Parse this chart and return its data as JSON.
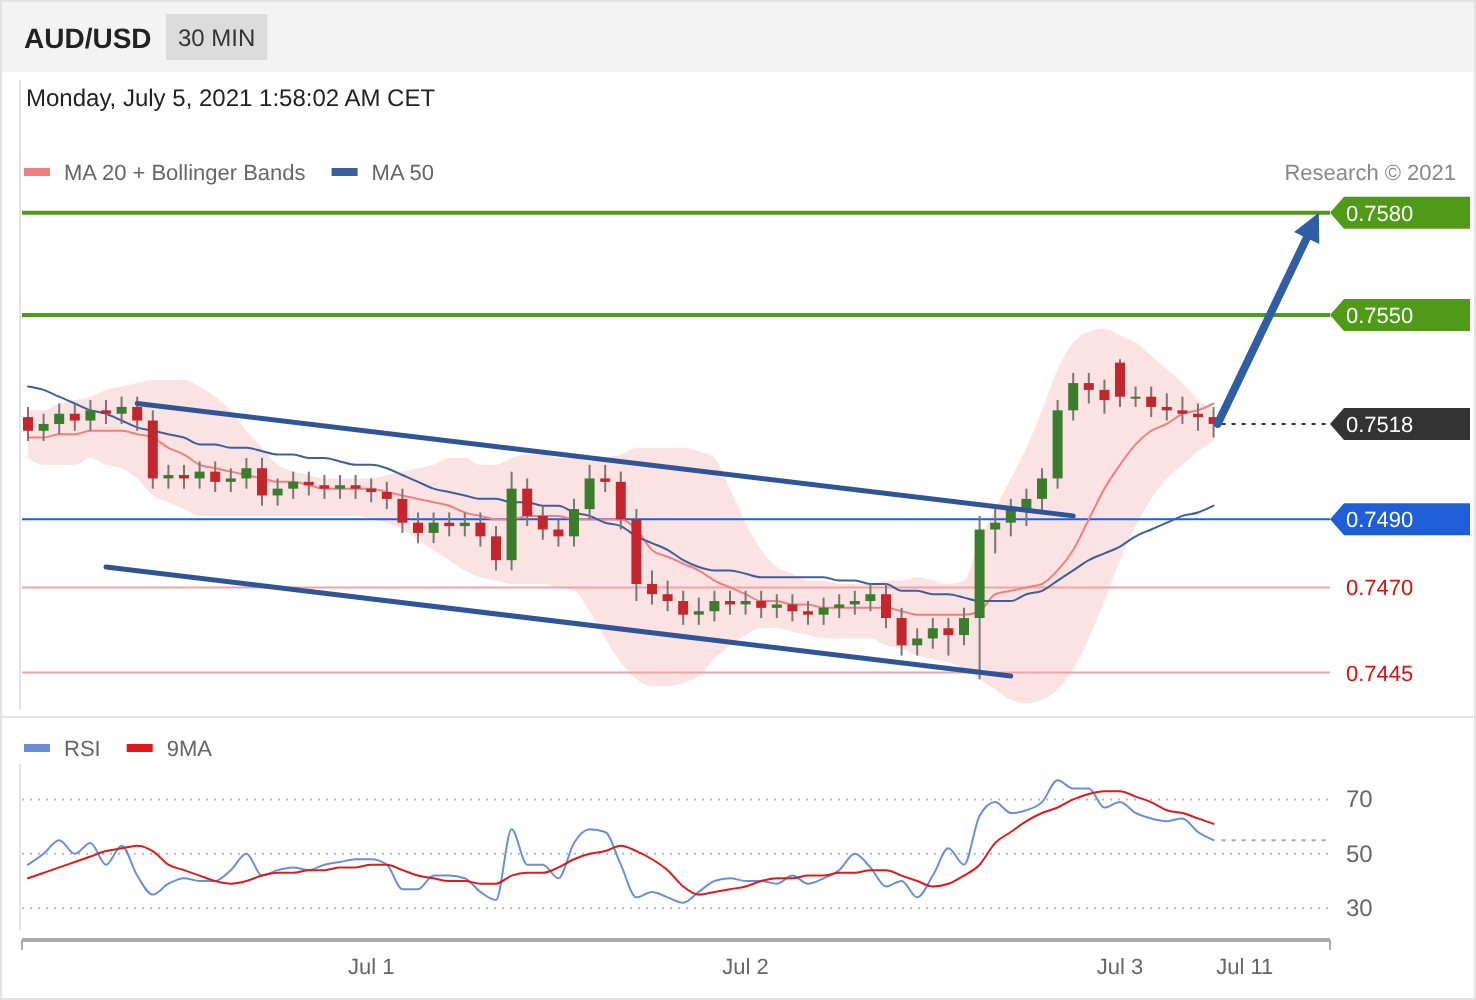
{
  "chart_data": [
    {
      "type": "candlestick",
      "title": "AUD/USD",
      "subtitle": "Monday, July 5, 2021 1:58:02 AM CET",
      "annotations": [
        "30 MIN",
        "Research © 2021"
      ],
      "categories": [
        null,
        null,
        null,
        null,
        null,
        null,
        null,
        null,
        null,
        null,
        null,
        null,
        null,
        null,
        null,
        null,
        null,
        null,
        null,
        null,
        null,
        null,
        null,
        null,
        null,
        null,
        null,
        null,
        null,
        null,
        null,
        null,
        null,
        null,
        null,
        null,
        null,
        null,
        null,
        null,
        null,
        null,
        null,
        null,
        null,
        null,
        null,
        null,
        null,
        null,
        null,
        null,
        null,
        null,
        null,
        null,
        null,
        null,
        null,
        null,
        null,
        null,
        null,
        null,
        null,
        null,
        null,
        null,
        null,
        null,
        null,
        null,
        null,
        null,
        null,
        null,
        null,
        null,
        null,
        null,
        null,
        null,
        null,
        null
      ],
      "ylim": [
        0.7434,
        0.7619
      ],
      "legend": "top left",
      "ohlc": [
        [
          0.752,
          0.7523,
          0.7513,
          0.7516
        ],
        [
          0.7516,
          0.7521,
          0.7513,
          0.7518
        ],
        [
          0.7518,
          0.7524,
          0.7515,
          0.7521
        ],
        [
          0.7521,
          0.7524,
          0.7516,
          0.7519
        ],
        [
          0.7519,
          0.7525,
          0.7516,
          0.7522
        ],
        [
          0.7522,
          0.7525,
          0.7518,
          0.7521
        ],
        [
          0.7521,
          0.7526,
          0.7518,
          0.7523
        ],
        [
          0.7523,
          0.7526,
          0.7516,
          0.7519
        ],
        [
          0.7519,
          0.7522,
          0.7499,
          0.7502
        ],
        [
          0.7502,
          0.7506,
          0.7499,
          0.7503
        ],
        [
          0.7503,
          0.7506,
          0.7499,
          0.7502
        ],
        [
          0.7502,
          0.7507,
          0.7499,
          0.7504
        ],
        [
          0.7504,
          0.7507,
          0.7498,
          0.7501
        ],
        [
          0.7501,
          0.7505,
          0.7498,
          0.7502
        ],
        [
          0.7502,
          0.7508,
          0.7499,
          0.7505
        ],
        [
          0.7505,
          0.7508,
          0.7494,
          0.7497
        ],
        [
          0.7497,
          0.7502,
          0.7494,
          0.7499
        ],
        [
          0.7499,
          0.7504,
          0.7496,
          0.7501
        ],
        [
          0.7501,
          0.7504,
          0.7497,
          0.75
        ],
        [
          0.75,
          0.7503,
          0.7496,
          0.7499
        ],
        [
          0.7499,
          0.7503,
          0.7496,
          0.75
        ],
        [
          0.75,
          0.7503,
          0.7496,
          0.7499
        ],
        [
          0.7499,
          0.7502,
          0.7495,
          0.7498
        ],
        [
          0.7498,
          0.7501,
          0.7493,
          0.7496
        ],
        [
          0.7496,
          0.7499,
          0.7486,
          0.7489
        ],
        [
          0.7489,
          0.7492,
          0.7483,
          0.7486
        ],
        [
          0.7486,
          0.7492,
          0.7483,
          0.7489
        ],
        [
          0.7489,
          0.7492,
          0.7485,
          0.7488
        ],
        [
          0.7488,
          0.7492,
          0.7485,
          0.7489
        ],
        [
          0.7489,
          0.7492,
          0.7482,
          0.7485
        ],
        [
          0.7485,
          0.7488,
          0.7475,
          0.7478
        ],
        [
          0.7478,
          0.7504,
          0.7475,
          0.7499
        ],
        [
          0.7499,
          0.7502,
          0.7488,
          0.7491
        ],
        [
          0.7491,
          0.7494,
          0.7484,
          0.7487
        ],
        [
          0.7487,
          0.749,
          0.7482,
          0.7485
        ],
        [
          0.7485,
          0.7496,
          0.7482,
          0.7493
        ],
        [
          0.7493,
          0.7506,
          0.749,
          0.7502
        ],
        [
          0.7502,
          0.7506,
          0.7498,
          0.7501
        ],
        [
          0.7501,
          0.7504,
          0.7487,
          0.749
        ],
        [
          0.749,
          0.7493,
          0.7466,
          0.7471
        ],
        [
          0.7471,
          0.7475,
          0.7465,
          0.7468
        ],
        [
          0.7468,
          0.7472,
          0.7463,
          0.7466
        ],
        [
          0.7466,
          0.7469,
          0.7459,
          0.7462
        ],
        [
          0.7462,
          0.7467,
          0.7459,
          0.7463
        ],
        [
          0.7463,
          0.7469,
          0.746,
          0.7466
        ],
        [
          0.7466,
          0.7469,
          0.7462,
          0.7465
        ],
        [
          0.7465,
          0.7469,
          0.7462,
          0.7466
        ],
        [
          0.7466,
          0.7469,
          0.7461,
          0.7464
        ],
        [
          0.7464,
          0.7468,
          0.7461,
          0.7465
        ],
        [
          0.7465,
          0.7468,
          0.746,
          0.7463
        ],
        [
          0.7463,
          0.7466,
          0.7459,
          0.7462
        ],
        [
          0.7462,
          0.7467,
          0.7459,
          0.7464
        ],
        [
          0.7464,
          0.7468,
          0.7461,
          0.7465
        ],
        [
          0.7465,
          0.7469,
          0.7462,
          0.7466
        ],
        [
          0.7466,
          0.7471,
          0.7463,
          0.7468
        ],
        [
          0.7468,
          0.7471,
          0.7458,
          0.7461
        ],
        [
          0.7461,
          0.7464,
          0.745,
          0.7453
        ],
        [
          0.7453,
          0.7458,
          0.745,
          0.7455
        ],
        [
          0.7455,
          0.7461,
          0.7452,
          0.7458
        ],
        [
          0.7458,
          0.7461,
          0.745,
          0.7456
        ],
        [
          0.7456,
          0.7464,
          0.7453,
          0.7461
        ],
        [
          0.7461,
          0.7491,
          0.7443,
          0.7487
        ],
        [
          0.7487,
          0.7493,
          0.748,
          0.7489
        ],
        [
          0.7489,
          0.7496,
          0.7485,
          0.7493
        ],
        [
          0.7493,
          0.7499,
          0.7488,
          0.7496
        ],
        [
          0.7496,
          0.7505,
          0.7492,
          0.7502
        ],
        [
          0.7502,
          0.7525,
          0.7499,
          0.7522
        ],
        [
          0.7522,
          0.7533,
          0.7519,
          0.753
        ],
        [
          0.753,
          0.7533,
          0.7524,
          0.7528
        ],
        [
          0.7528,
          0.7531,
          0.7521,
          0.7525
        ],
        [
          0.7536,
          0.7537,
          0.7523,
          0.7526
        ],
        [
          0.7526,
          0.7529,
          0.7523,
          0.7526
        ],
        [
          0.7526,
          0.7529,
          0.752,
          0.7523
        ],
        [
          0.7523,
          0.7527,
          0.7519,
          0.7522
        ],
        [
          0.7522,
          0.7526,
          0.7518,
          0.7521
        ],
        [
          0.7521,
          0.7524,
          0.7516,
          0.752
        ],
        [
          0.752,
          0.7523,
          0.7514,
          0.7518
        ],
        null,
        null,
        null,
        null,
        null,
        null,
        null
      ],
      "colors": [
        "#c4262e",
        "#3a7d2c",
        "#3a7d2c",
        "#c4262e",
        "#3a7d2c",
        "#c4262e",
        "#3a7d2c",
        "#c4262e",
        "#c4262e",
        "#3a7d2c",
        "#c4262e",
        "#3a7d2c",
        "#c4262e",
        "#3a7d2c",
        "#3a7d2c",
        "#c4262e",
        "#3a7d2c",
        "#3a7d2c",
        "#c4262e",
        "#c4262e",
        "#3a7d2c",
        "#c4262e",
        "#c4262e",
        "#c4262e",
        "#c4262e",
        "#c4262e",
        "#3a7d2c",
        "#c4262e",
        "#3a7d2c",
        "#c4262e",
        "#c4262e",
        "#3a7d2c",
        "#c4262e",
        "#c4262e",
        "#c4262e",
        "#3a7d2c",
        "#3a7d2c",
        "#c4262e",
        "#c4262e",
        "#c4262e",
        "#c4262e",
        "#c4262e",
        "#c4262e",
        "#3a7d2c",
        "#3a7d2c",
        "#c4262e",
        "#3a7d2c",
        "#c4262e",
        "#3a7d2c",
        "#c4262e",
        "#c4262e",
        "#3a7d2c",
        "#3a7d2c",
        "#3a7d2c",
        "#3a7d2c",
        "#c4262e",
        "#c4262e",
        "#3a7d2c",
        "#3a7d2c",
        "#c4262e",
        "#3a7d2c",
        "#3a7d2c",
        "#3a7d2c",
        "#3a7d2c",
        "#3a7d2c",
        "#3a7d2c",
        "#3a7d2c",
        "#3a7d2c",
        "#c4262e",
        "#c4262e",
        "#c4262e",
        "#3a7d2c",
        "#c4262e",
        "#c4262e",
        "#c4262e",
        "#c4262e",
        "#c4262e",
        null,
        null,
        null,
        null,
        null,
        null,
        null
      ],
      "series": [
        {
          "type": "line",
          "name": "MA 20 + Bollinger Bands",
          "color": "#f08080",
          "values": [
            0.7514,
            0.7514,
            0.7515,
            0.7515,
            0.7516,
            0.7516,
            0.7516,
            0.7515,
            0.7514,
            0.7511,
            0.7509,
            0.7506,
            0.7505,
            0.7504,
            0.7503,
            0.7502,
            0.7501,
            0.7501,
            0.75,
            0.7499,
            0.7499,
            0.7499,
            0.7499,
            0.7498,
            0.7497,
            0.7496,
            0.7495,
            0.7494,
            0.7492,
            0.7491,
            0.749,
            0.749,
            0.7491,
            0.7491,
            0.7491,
            0.749,
            0.749,
            0.749,
            0.749,
            0.7487,
            0.7481,
            0.7479,
            0.7477,
            0.7475,
            0.7472,
            0.747,
            0.7468,
            0.7466,
            0.7466,
            0.7465,
            0.7465,
            0.7464,
            0.7464,
            0.7464,
            0.7464,
            0.7464,
            0.7463,
            0.7462,
            0.7462,
            0.7462,
            0.7462,
            0.7463,
            0.7468,
            0.7469,
            0.747,
            0.7471,
            0.7475,
            0.7481,
            0.749,
            0.7499,
            0.7506,
            0.7512,
            0.7516,
            0.7518,
            0.7521,
            0.7522,
            0.7524,
            null,
            null,
            null,
            null,
            null,
            null,
            null
          ],
          "upper": [
            0.7522,
            0.7522,
            0.7524,
            0.7525,
            0.7526,
            0.7528,
            0.7529,
            0.753,
            0.7531,
            0.7531,
            0.7531,
            0.7529,
            0.7526,
            0.7522,
            0.7516,
            0.7511,
            0.7506,
            0.7504,
            0.7503,
            0.7502,
            0.7502,
            0.7502,
            0.7502,
            0.7503,
            0.7504,
            0.7505,
            0.7506,
            0.7508,
            0.7508,
            0.7506,
            0.7506,
            0.7508,
            0.7509,
            0.7509,
            0.7508,
            0.7508,
            0.7507,
            0.7508,
            0.7509,
            0.7511,
            0.7511,
            0.7511,
            0.7511,
            0.751,
            0.7508,
            0.7499,
            0.7489,
            0.7481,
            0.7476,
            0.7474,
            0.7472,
            0.7472,
            0.7471,
            0.7471,
            0.7471,
            0.7472,
            0.7472,
            0.7473,
            0.7472,
            0.7471,
            0.7472,
            0.7484,
            0.7493,
            0.7502,
            0.7511,
            0.7522,
            0.7534,
            0.7542,
            0.7545,
            0.7546,
            0.7544,
            0.7542,
            0.7538,
            0.7534,
            0.753,
            0.7525,
            0.7522,
            null,
            null,
            null,
            null,
            null,
            null,
            null
          ],
          "lower": [
            0.7508,
            0.7506,
            0.7506,
            0.7506,
            0.7508,
            0.7506,
            0.7505,
            0.7502,
            0.7497,
            0.7495,
            0.7493,
            0.7491,
            0.7491,
            0.7491,
            0.7491,
            0.7491,
            0.7491,
            0.7491,
            0.7491,
            0.7491,
            0.7491,
            0.7491,
            0.749,
            0.7489,
            0.7487,
            0.7484,
            0.7481,
            0.7478,
            0.7475,
            0.7473,
            0.7472,
            0.7471,
            0.7471,
            0.7471,
            0.747,
            0.7469,
            0.7463,
            0.7455,
            0.7448,
            0.7443,
            0.7441,
            0.7441,
            0.7442,
            0.7444,
            0.7449,
            0.7453,
            0.7456,
            0.7458,
            0.7458,
            0.7457,
            0.7456,
            0.7455,
            0.7455,
            0.7455,
            0.7455,
            0.7453,
            0.7452,
            0.745,
            0.7449,
            0.7448,
            0.7446,
            0.7443,
            0.744,
            0.7437,
            0.7436,
            0.7437,
            0.744,
            0.7446,
            0.7455,
            0.7466,
            0.7478,
            0.7488,
            0.7496,
            0.7502,
            0.7506,
            0.751,
            0.7513,
            null,
            null,
            null,
            null,
            null,
            null,
            null
          ]
        },
        {
          "type": "line",
          "name": "MA 50",
          "color": "#3d5f9e",
          "values": [
            0.7529,
            0.7528,
            0.7526,
            0.7524,
            0.7522,
            0.7521,
            0.7519,
            0.7517,
            0.7516,
            0.7515,
            0.7514,
            0.7512,
            0.7512,
            0.7511,
            0.7511,
            0.751,
            0.7509,
            0.7509,
            0.7508,
            0.7508,
            0.7507,
            0.7506,
            0.7506,
            0.7505,
            0.7503,
            0.7501,
            0.7499,
            0.7498,
            0.7497,
            0.7496,
            0.7496,
            0.7495,
            0.7495,
            0.7494,
            0.7494,
            0.7492,
            0.7491,
            0.7489,
            0.7488,
            0.7485,
            0.7483,
            0.7481,
            0.7478,
            0.7476,
            0.7475,
            0.7475,
            0.7474,
            0.7473,
            0.7473,
            0.7473,
            0.7473,
            0.7473,
            0.7472,
            0.7472,
            0.7471,
            0.7471,
            0.7469,
            0.7469,
            0.7468,
            0.7468,
            0.7467,
            0.7466,
            0.7466,
            0.7466,
            0.7468,
            0.7469,
            0.7472,
            0.7475,
            0.7478,
            0.748,
            0.7482,
            0.7485,
            0.7487,
            0.7489,
            0.7491,
            0.7492,
            0.7494,
            null,
            null,
            null,
            null,
            null,
            null,
            null
          ]
        },
        {
          "type": "line",
          "color": "#2f5597",
          "values": [
            null,
            null,
            null,
            null,
            null,
            null,
            null,
            0.7524,
            null,
            null,
            null,
            null,
            null,
            null,
            null,
            null,
            null,
            null,
            null,
            null,
            null,
            null,
            null,
            null,
            null,
            null,
            null,
            null,
            null,
            null,
            null,
            null,
            null,
            null,
            null,
            null,
            null,
            null,
            null,
            null,
            null,
            null,
            null,
            null,
            null,
            null,
            null,
            null,
            null,
            null,
            null,
            null,
            null,
            null,
            null,
            null,
            null,
            null,
            null,
            null,
            null,
            null,
            null,
            null,
            null,
            null,
            null,
            0.7491,
            null,
            null,
            null,
            null,
            null,
            null,
            null,
            null,
            null,
            null,
            null,
            null,
            null,
            null,
            null,
            null
          ]
        },
        {
          "type": "line",
          "color": "#2f5597",
          "values": [
            null,
            null,
            null,
            null,
            null,
            0.7476,
            null,
            null,
            null,
            null,
            null,
            null,
            null,
            null,
            null,
            null,
            null,
            null,
            null,
            null,
            null,
            null,
            null,
            null,
            null,
            null,
            null,
            null,
            null,
            null,
            null,
            null,
            null,
            null,
            null,
            null,
            null,
            null,
            null,
            null,
            null,
            null,
            null,
            null,
            null,
            null,
            null,
            null,
            null,
            null,
            null,
            null,
            null,
            null,
            null,
            null,
            null,
            null,
            null,
            null,
            null,
            null,
            null,
            0.7444,
            null,
            null,
            null,
            null,
            null,
            null,
            null,
            null,
            null,
            null,
            null,
            null,
            null,
            null,
            null,
            null,
            null,
            null,
            null,
            null
          ]
        }
      ],
      "ref_lines": [
        {
          "axis": "y",
          "value": 0.758,
          "label": "0.7580",
          "color": "#4f9a16"
        },
        {
          "axis": "y",
          "value": 0.755,
          "label": "0.7550",
          "color": "#4f9a16"
        },
        {
          "axis": "y",
          "value": 0.7518,
          "label": "0.7518",
          "color": "#333333",
          "line_style": "dotted"
        },
        {
          "axis": "y",
          "value": 0.749,
          "label": "0.7490",
          "color": "#1e5fd8"
        },
        {
          "axis": "y",
          "value": 0.747,
          "label": "0.7470",
          "color": "#f4a3a3"
        },
        {
          "axis": "y",
          "value": 0.7445,
          "label": "0.7445",
          "color": "#f4a3a3"
        }
      ]
    },
    {
      "type": "line",
      "legend": "top left",
      "grid": "y",
      "ylim": [
        22,
        83
      ],
      "yticks": [
        30,
        50,
        70
      ],
      "categories": [
        null,
        null,
        null,
        null,
        null,
        null,
        null,
        null,
        null,
        null,
        null,
        null,
        null,
        null,
        null,
        null,
        null,
        null,
        null,
        null,
        null,
        null,
        "Jul 1",
        null,
        null,
        null,
        null,
        null,
        null,
        null,
        null,
        null,
        null,
        null,
        null,
        null,
        null,
        null,
        null,
        null,
        null,
        null,
        null,
        null,
        null,
        null,
        "Jul 2",
        null,
        null,
        null,
        null,
        null,
        null,
        null,
        null,
        null,
        null,
        null,
        null,
        null,
        null,
        null,
        null,
        null,
        null,
        null,
        null,
        null,
        null,
        null,
        "Jul 3",
        null,
        null,
        null,
        null,
        null,
        null,
        null,
        "Jul 11",
        null,
        null,
        null,
        null,
        null
      ],
      "series": [
        {
          "name": "RSI",
          "color": "#6b8fd6",
          "values": [
            46,
            50,
            55,
            50,
            54,
            46,
            53,
            42,
            35,
            39,
            41,
            40,
            40,
            44,
            50,
            42,
            44,
            45,
            44,
            46,
            47,
            48,
            48,
            46,
            37,
            37,
            42,
            42,
            41,
            36,
            33,
            59,
            46,
            46,
            41,
            54,
            59,
            58,
            46,
            34,
            36,
            34,
            32,
            36,
            40,
            41,
            40,
            40,
            39,
            42,
            39,
            41,
            44,
            50,
            45,
            38,
            40,
            34,
            42,
            52,
            46,
            64,
            69,
            65,
            66,
            69,
            77,
            74,
            74,
            67,
            69,
            65,
            63,
            62,
            63,
            58,
            55,
            null,
            null,
            null,
            null,
            null,
            null,
            null
          ]
        },
        {
          "name": "9MA",
          "color": "#e01a1a",
          "values": [
            41,
            43,
            45,
            47,
            49,
            51,
            52,
            53,
            51,
            46,
            44,
            42,
            40,
            39,
            40,
            42,
            43,
            43,
            44,
            44,
            45,
            45,
            46,
            46,
            44,
            42,
            41,
            40,
            40,
            39,
            39,
            42,
            43,
            43,
            45,
            48,
            50,
            51,
            53,
            51,
            48,
            44,
            38,
            35,
            36,
            37,
            38,
            40,
            41,
            41,
            42,
            42,
            43,
            43,
            44,
            44,
            42,
            40,
            38,
            39,
            42,
            46,
            54,
            58,
            62,
            65,
            67,
            70,
            72,
            73,
            73,
            71,
            69,
            66,
            65,
            63,
            61,
            null,
            null,
            null,
            null,
            null,
            null,
            null
          ]
        }
      ],
      "ref_lines": [
        {
          "axis": "y",
          "value": 55,
          "color": "#9aa8c8",
          "line_style": "dotted"
        }
      ]
    }
  ]
}
